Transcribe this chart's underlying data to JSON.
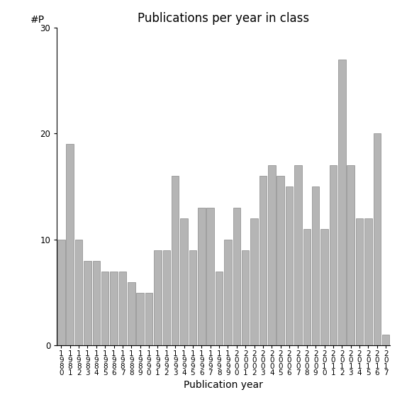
{
  "years": [
    "1\n9\n8\n0",
    "1\n9\n8\n1",
    "1\n9\n8\n2",
    "1\n9\n8\n3",
    "1\n9\n8\n4",
    "1\n9\n8\n5",
    "1\n9\n8\n6",
    "1\n9\n8\n7",
    "1\n9\n8\n8",
    "1\n9\n8\n9",
    "1\n9\n9\n0",
    "1\n9\n9\n1",
    "1\n9\n9\n2",
    "1\n9\n9\n3",
    "1\n9\n9\n4",
    "1\n9\n9\n5",
    "1\n9\n9\n6",
    "1\n9\n9\n7",
    "1\n9\n9\n8",
    "1\n9\n9\n9",
    "2\n0\n0\n0",
    "2\n0\n0\n1",
    "2\n0\n0\n2",
    "2\n0\n0\n3",
    "2\n0\n0\n4",
    "2\n0\n0\n5",
    "2\n0\n0\n6",
    "2\n0\n0\n7",
    "2\n0\n0\n8",
    "2\n0\n0\n9",
    "2\n0\n1\n0",
    "2\n0\n1\n1",
    "2\n0\n1\n2",
    "2\n0\n1\n3",
    "2\n0\n1\n4",
    "2\n0\n1\n5",
    "2\n0\n1\n6",
    "2\n0\n1\n7"
  ],
  "values": [
    10,
    19,
    10,
    8,
    8,
    7,
    7,
    7,
    6,
    5,
    5,
    9,
    9,
    16,
    12,
    9,
    13,
    13,
    7,
    10,
    13,
    9,
    12,
    16,
    17,
    16,
    15,
    17,
    11,
    15,
    11,
    17,
    27,
    17,
    12,
    12,
    20,
    1
  ],
  "bar_color": "#b5b5b5",
  "bar_edge_color": "#888888",
  "title": "Publications per year in class",
  "xlabel": "Publication year",
  "ylabel": "#P",
  "ylim": [
    0,
    30
  ],
  "yticks": [
    0,
    10,
    20,
    30
  ],
  "title_fontsize": 12,
  "label_fontsize": 10,
  "tick_fontsize": 7.5
}
